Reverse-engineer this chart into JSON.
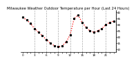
{
  "title": "Milwaukee Weather Outdoor Temperature per Hour (Last 24 Hours)",
  "hours": [
    0,
    1,
    2,
    3,
    4,
    5,
    6,
    7,
    8,
    9,
    10,
    11,
    12,
    13,
    14,
    15,
    16,
    17,
    18,
    19,
    20,
    21,
    22,
    23
  ],
  "temps": [
    36,
    34,
    31,
    27,
    24,
    21,
    18,
    15,
    13,
    12,
    13,
    16,
    22,
    35,
    38,
    32,
    28,
    25,
    24,
    25,
    27,
    30,
    32,
    33
  ],
  "ylim": [
    8,
    42
  ],
  "yticks": [
    10,
    15,
    20,
    25,
    30,
    35,
    40
  ],
  "line_color": "#ff0000",
  "marker_color": "#000000",
  "grid_color": "#aaaaaa",
  "bg_color": "#ffffff",
  "title_fontsize": 3.8,
  "tick_fontsize": 3.0,
  "vgrid_positions": [
    3,
    6,
    9,
    12,
    15,
    18,
    21
  ],
  "xtick_every": 3
}
